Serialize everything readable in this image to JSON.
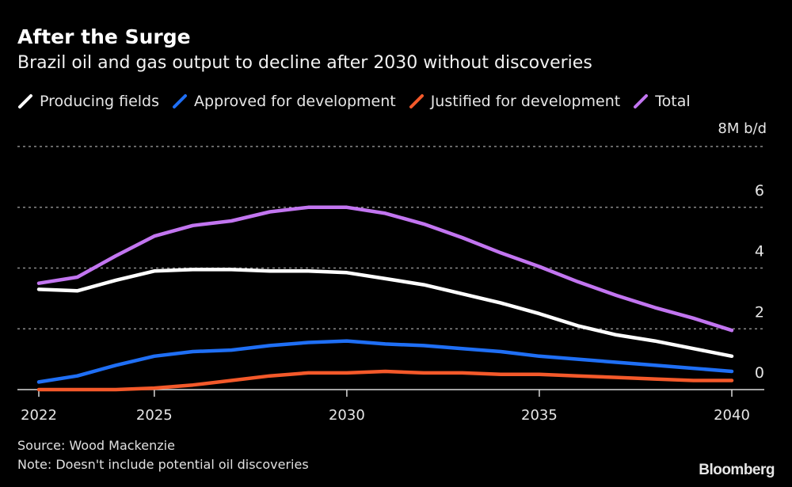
{
  "header": {
    "title": "After the Surge",
    "subtitle": "Brazil oil and gas output to decline after 2030 without discoveries"
  },
  "legend": [
    {
      "label": "Producing fields",
      "color": "#ffffff"
    },
    {
      "label": "Approved for development",
      "color": "#1f6ff5"
    },
    {
      "label": "Justified for development",
      "color": "#f4592a"
    },
    {
      "label": "Total",
      "color": "#c275f0"
    }
  ],
  "footer": {
    "source": "Source: Wood Mackenzie",
    "note": "Note: Doesn't include potential oil discoveries",
    "brand": "Bloomberg"
  },
  "chart_data": {
    "type": "line",
    "title": "After the Surge",
    "subtitle": "Brazil oil and gas output to decline after 2030 without discoveries",
    "xlabel": "",
    "ylabel": "M b/d",
    "unit_label": "8M b/d",
    "x": [
      2022,
      2023,
      2024,
      2025,
      2026,
      2027,
      2028,
      2029,
      2030,
      2031,
      2032,
      2033,
      2034,
      2035,
      2036,
      2037,
      2038,
      2039,
      2040
    ],
    "x_ticks": [
      2022,
      2025,
      2030,
      2035,
      2040
    ],
    "x_tick_labels": [
      "2022",
      "2025",
      "2030",
      "2035",
      "2040"
    ],
    "y_ticks": [
      0,
      2,
      4,
      6,
      8
    ],
    "y_tick_labels": [
      "0",
      "2",
      "4",
      "6",
      "8M b/d"
    ],
    "ylim": [
      0,
      8
    ],
    "xlim": [
      2022,
      2040
    ],
    "grid": true,
    "legend_position": "top-left",
    "series": [
      {
        "name": "Producing fields",
        "color": "#ffffff",
        "values": [
          3.3,
          3.25,
          3.6,
          3.9,
          3.95,
          3.95,
          3.9,
          3.9,
          3.85,
          3.65,
          3.45,
          3.15,
          2.85,
          2.5,
          2.1,
          1.8,
          1.6,
          1.35,
          1.1
        ]
      },
      {
        "name": "Approved for development",
        "color": "#1f6ff5",
        "values": [
          0.25,
          0.45,
          0.8,
          1.1,
          1.25,
          1.3,
          1.45,
          1.55,
          1.6,
          1.5,
          1.45,
          1.35,
          1.25,
          1.1,
          1.0,
          0.9,
          0.8,
          0.7,
          0.6
        ]
      },
      {
        "name": "Justified for development",
        "color": "#f4592a",
        "values": [
          0,
          0,
          0,
          0.05,
          0.15,
          0.3,
          0.45,
          0.55,
          0.55,
          0.6,
          0.55,
          0.55,
          0.5,
          0.5,
          0.45,
          0.4,
          0.35,
          0.3,
          0.3
        ]
      },
      {
        "name": "Total",
        "color": "#c275f0",
        "values": [
          3.5,
          3.7,
          4.4,
          5.05,
          5.4,
          5.55,
          5.85,
          6.0,
          6.0,
          5.8,
          5.45,
          5.0,
          4.5,
          4.05,
          3.55,
          3.1,
          2.7,
          2.35,
          1.95
        ]
      }
    ]
  }
}
